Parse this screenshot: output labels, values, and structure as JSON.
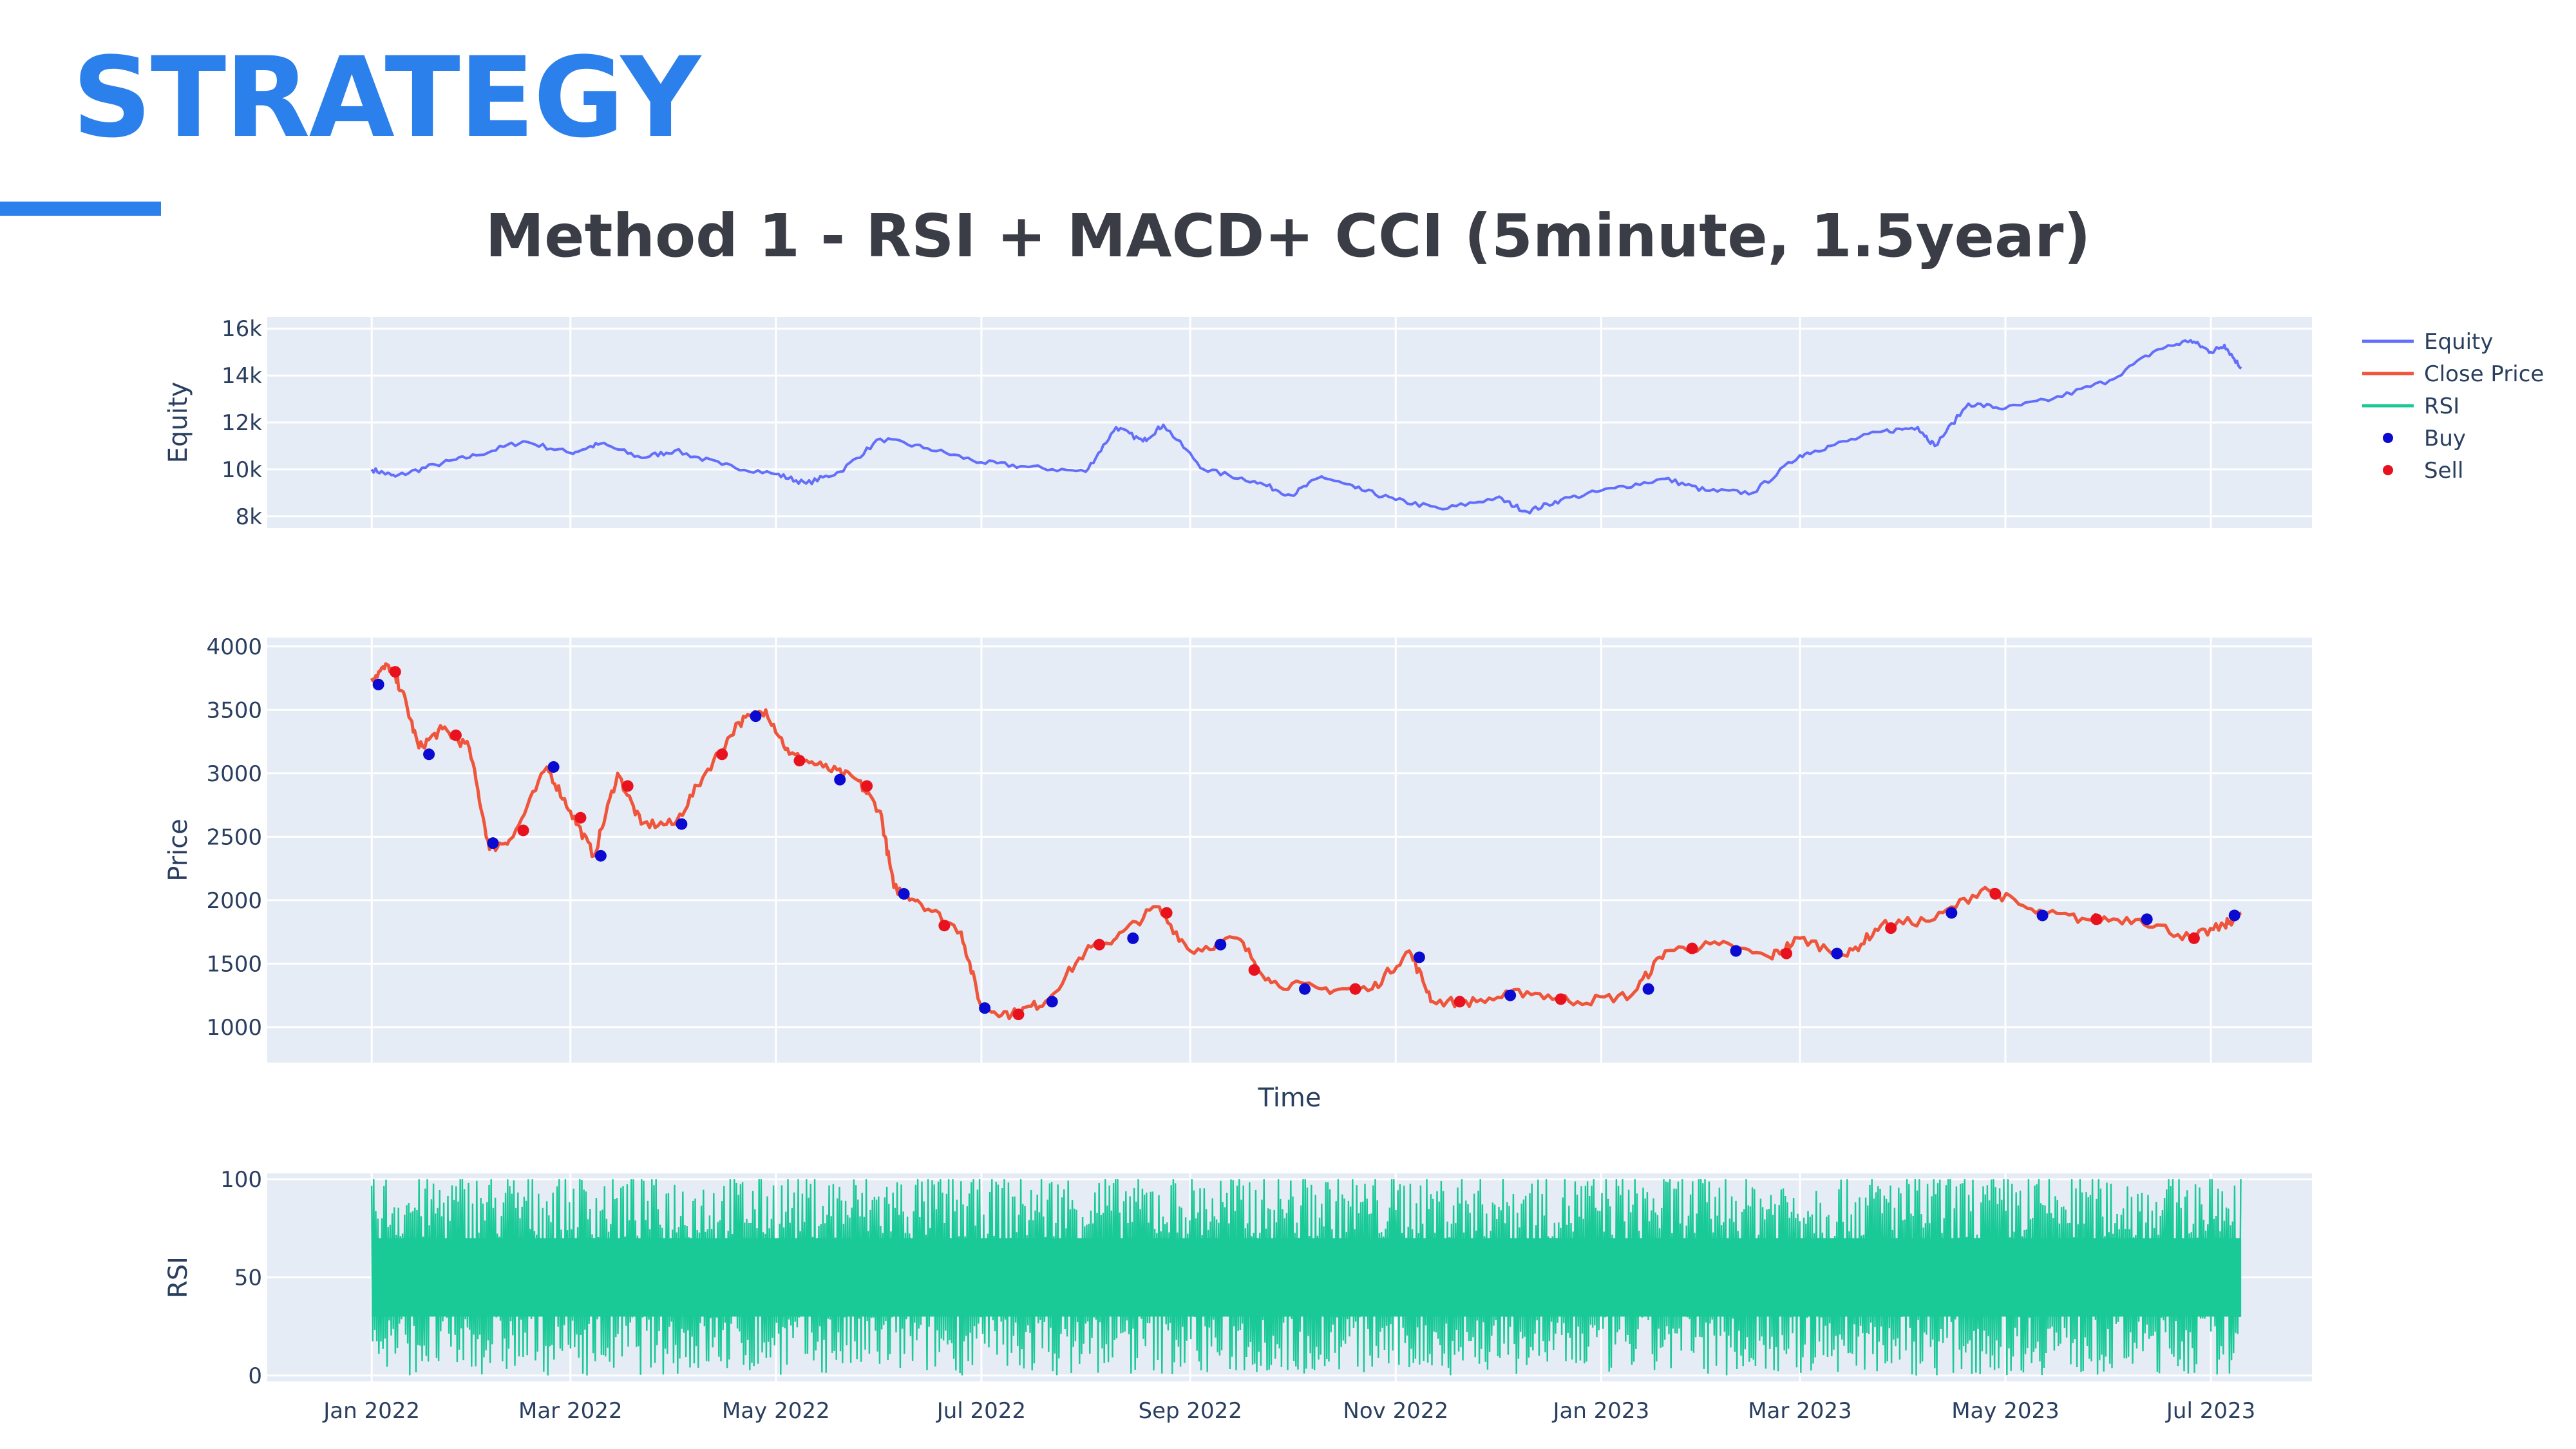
{
  "slide": {
    "heading": "STRATEGY",
    "accent_color": "#2c80eb"
  },
  "chart_data": {
    "type": "line",
    "title": "Method 1 -  RSI + MACD+ CCI (5minute, 1.5year)",
    "xlabel": "Time",
    "x_ticks": [
      "Jan 2022",
      "Mar 2022",
      "May 2022",
      "Jul 2022",
      "Sep 2022",
      "Nov 2022",
      "Jan 2023",
      "Mar 2023",
      "May 2023",
      "Jul 2023"
    ],
    "x_range": [
      "2021-12-01",
      "2023-07-31"
    ],
    "legend": {
      "placement": "top-right",
      "entries": [
        {
          "label": "Equity",
          "color": "#636efa",
          "kind": "line"
        },
        {
          "label": "Close Price",
          "color": "#ef553b",
          "kind": "line"
        },
        {
          "label": "RSI",
          "color": "#19c996",
          "kind": "line"
        },
        {
          "label": "Buy",
          "color": "#0a0ad0",
          "kind": "marker"
        },
        {
          "label": "Sell",
          "color": "#e8121e",
          "kind": "marker"
        }
      ]
    },
    "panels": [
      {
        "id": "equity",
        "ylabel": "Equity",
        "ylim": [
          7500,
          16500
        ],
        "y_ticks": [
          {
            "value": 8000,
            "label": "8k"
          },
          {
            "value": 10000,
            "label": "10k"
          },
          {
            "value": 12000,
            "label": "12k"
          },
          {
            "value": 14000,
            "label": "14k"
          },
          {
            "value": 16000,
            "label": "16k"
          }
        ],
        "grid": true,
        "series": [
          {
            "name": "Equity",
            "color": "#636efa",
            "points": [
              [
                "2022-01-01",
                10000
              ],
              [
                "2022-01-08",
                9700
              ],
              [
                "2022-01-20",
                10200
              ],
              [
                "2022-02-01",
                10600
              ],
              [
                "2022-02-15",
                11200
              ],
              [
                "2022-03-01",
                10700
              ],
              [
                "2022-03-10",
                11100
              ],
              [
                "2022-03-22",
                10500
              ],
              [
                "2022-04-01",
                10800
              ],
              [
                "2022-04-15",
                10200
              ],
              [
                "2022-05-01",
                9800
              ],
              [
                "2022-05-10",
                9400
              ],
              [
                "2022-05-20",
                9900
              ],
              [
                "2022-06-01",
                11300
              ],
              [
                "2022-06-15",
                10900
              ],
              [
                "2022-07-01",
                10300
              ],
              [
                "2022-07-15",
                10100
              ],
              [
                "2022-08-01",
                9900
              ],
              [
                "2022-08-10",
                11800
              ],
              [
                "2022-08-18",
                11200
              ],
              [
                "2022-08-24",
                11900
              ],
              [
                "2022-09-05",
                10000
              ],
              [
                "2022-09-20",
                9500
              ],
              [
                "2022-10-01",
                8900
              ],
              [
                "2022-10-10",
                9700
              ],
              [
                "2022-10-20",
                9200
              ],
              [
                "2022-11-01",
                8700
              ],
              [
                "2022-11-15",
                8300
              ],
              [
                "2022-12-01",
                8800
              ],
              [
                "2022-12-10",
                8200
              ],
              [
                "2022-12-20",
                8700
              ],
              [
                "2023-01-05",
                9200
              ],
              [
                "2023-01-20",
                9600
              ],
              [
                "2023-02-01",
                9100
              ],
              [
                "2023-02-15",
                9000
              ],
              [
                "2023-03-01",
                10600
              ],
              [
                "2023-03-10",
                11000
              ],
              [
                "2023-03-25",
                11600
              ],
              [
                "2023-04-05",
                11800
              ],
              [
                "2023-04-10",
                11000
              ],
              [
                "2023-04-20",
                12800
              ],
              [
                "2023-05-01",
                12600
              ],
              [
                "2023-05-15",
                13000
              ],
              [
                "2023-06-01",
                13800
              ],
              [
                "2023-06-15",
                15100
              ],
              [
                "2023-06-25",
                15500
              ],
              [
                "2023-07-01",
                15000
              ],
              [
                "2023-07-05",
                15300
              ],
              [
                "2023-07-10",
                14300
              ]
            ]
          }
        ]
      },
      {
        "id": "price",
        "ylabel": "Price",
        "ylim": [
          720,
          4070
        ],
        "y_ticks": [
          {
            "value": 1000,
            "label": "1000"
          },
          {
            "value": 1500,
            "label": "1500"
          },
          {
            "value": 2000,
            "label": "2000"
          },
          {
            "value": 2500,
            "label": "2500"
          },
          {
            "value": 3000,
            "label": "3000"
          },
          {
            "value": 3500,
            "label": "3500"
          },
          {
            "value": 4000,
            "label": "4000"
          }
        ],
        "grid": true,
        "series": [
          {
            "name": "Close Price",
            "color": "#ef553b",
            "points": [
              [
                "2022-01-01",
                3750
              ],
              [
                "2022-01-06",
                3850
              ],
              [
                "2022-01-10",
                3650
              ],
              [
                "2022-01-15",
                3200
              ],
              [
                "2022-01-22",
                3350
              ],
              [
                "2022-01-30",
                3200
              ],
              [
                "2022-02-05",
                2400
              ],
              [
                "2022-02-12",
                2500
              ],
              [
                "2022-02-22",
                3050
              ],
              [
                "2022-03-01",
                2700
              ],
              [
                "2022-03-08",
                2350
              ],
              [
                "2022-03-15",
                3000
              ],
              [
                "2022-03-22",
                2600
              ],
              [
                "2022-04-01",
                2600
              ],
              [
                "2022-04-10",
                3000
              ],
              [
                "2022-04-20",
                3400
              ],
              [
                "2022-04-28",
                3500
              ],
              [
                "2022-05-05",
                3150
              ],
              [
                "2022-05-15",
                3050
              ],
              [
                "2022-05-25",
                2950
              ],
              [
                "2022-06-01",
                2700
              ],
              [
                "2022-06-05",
                2100
              ],
              [
                "2022-06-12",
                2000
              ],
              [
                "2022-06-25",
                1750
              ],
              [
                "2022-07-01",
                1150
              ],
              [
                "2022-07-10",
                1100
              ],
              [
                "2022-07-20",
                1200
              ],
              [
                "2022-08-01",
                1600
              ],
              [
                "2022-08-10",
                1700
              ],
              [
                "2022-08-22",
                1950
              ],
              [
                "2022-09-01",
                1600
              ],
              [
                "2022-09-15",
                1700
              ],
              [
                "2022-09-25",
                1350
              ],
              [
                "2022-10-10",
                1300
              ],
              [
                "2022-10-25",
                1300
              ],
              [
                "2022-11-05",
                1600
              ],
              [
                "2022-11-12",
                1200
              ],
              [
                "2022-11-25",
                1200
              ],
              [
                "2022-12-10",
                1280
              ],
              [
                "2022-12-25",
                1200
              ],
              [
                "2023-01-10",
                1250
              ],
              [
                "2023-01-20",
                1600
              ],
              [
                "2023-02-05",
                1650
              ],
              [
                "2023-02-20",
                1550
              ],
              [
                "2023-03-01",
                1700
              ],
              [
                "2023-03-15",
                1560
              ],
              [
                "2023-03-25",
                1800
              ],
              [
                "2023-04-10",
                1850
              ],
              [
                "2023-04-25",
                2100
              ],
              [
                "2023-05-10",
                1900
              ],
              [
                "2023-05-25",
                1850
              ],
              [
                "2023-06-10",
                1850
              ],
              [
                "2023-06-25",
                1700
              ],
              [
                "2023-07-05",
                1800
              ],
              [
                "2023-07-10",
                1900
              ]
            ]
          },
          {
            "name": "Buy",
            "color": "#0a0ad0",
            "points": [
              [
                "2022-01-03",
                3700
              ],
              [
                "2022-01-18",
                3150
              ],
              [
                "2022-02-06",
                2450
              ],
              [
                "2022-02-24",
                3050
              ],
              [
                "2022-03-10",
                2350
              ],
              [
                "2022-04-03",
                2600
              ],
              [
                "2022-04-25",
                3450
              ],
              [
                "2022-05-20",
                2950
              ],
              [
                "2022-06-08",
                2050
              ],
              [
                "2022-07-02",
                1150
              ],
              [
                "2022-07-22",
                1200
              ],
              [
                "2022-08-15",
                1700
              ],
              [
                "2022-09-10",
                1650
              ],
              [
                "2022-10-05",
                1300
              ],
              [
                "2022-11-08",
                1550
              ],
              [
                "2022-12-05",
                1250
              ],
              [
                "2023-01-15",
                1300
              ],
              [
                "2023-02-10",
                1600
              ],
              [
                "2023-03-12",
                1580
              ],
              [
                "2023-04-15",
                1900
              ],
              [
                "2023-05-12",
                1880
              ],
              [
                "2023-06-12",
                1850
              ],
              [
                "2023-07-08",
                1880
              ]
            ]
          },
          {
            "name": "Sell",
            "color": "#e8121e",
            "points": [
              [
                "2022-01-08",
                3800
              ],
              [
                "2022-01-26",
                3300
              ],
              [
                "2022-02-15",
                2550
              ],
              [
                "2022-03-04",
                2650
              ],
              [
                "2022-03-18",
                2900
              ],
              [
                "2022-04-15",
                3150
              ],
              [
                "2022-05-08",
                3100
              ],
              [
                "2022-05-28",
                2900
              ],
              [
                "2022-06-20",
                1800
              ],
              [
                "2022-07-12",
                1100
              ],
              [
                "2022-08-05",
                1650
              ],
              [
                "2022-08-25",
                1900
              ],
              [
                "2022-09-20",
                1450
              ],
              [
                "2022-10-20",
                1300
              ],
              [
                "2022-11-20",
                1200
              ],
              [
                "2022-12-20",
                1220
              ],
              [
                "2023-01-28",
                1620
              ],
              [
                "2023-02-25",
                1580
              ],
              [
                "2023-03-28",
                1780
              ],
              [
                "2023-04-28",
                2050
              ],
              [
                "2023-05-28",
                1850
              ],
              [
                "2023-06-26",
                1700
              ]
            ]
          }
        ]
      },
      {
        "id": "rsi",
        "ylabel": "RSI",
        "ylim": [
          -3,
          103
        ],
        "y_ticks": [
          {
            "value": 0,
            "label": "0"
          },
          {
            "value": 50,
            "label": "50"
          },
          {
            "value": 100,
            "label": "100"
          }
        ],
        "grid": true,
        "series": [
          {
            "name": "RSI",
            "color": "#19c996",
            "x_start": "2022-01-01",
            "x_end": "2023-07-10",
            "min": 0,
            "max": 100,
            "typical_low": 10,
            "typical_high": 85
          }
        ]
      }
    ]
  }
}
